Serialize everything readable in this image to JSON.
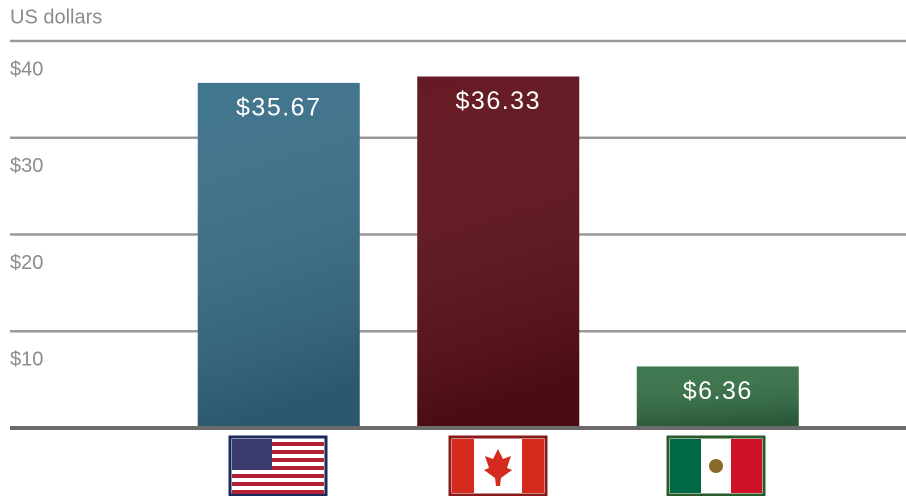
{
  "chart_data": {
    "type": "bar",
    "y_axis_label": "US dollars",
    "categories": [
      null,
      null,
      null
    ],
    "values": [
      35.67,
      36.33,
      6.36
    ],
    "value_labels": [
      "$35.67",
      "$36.33",
      "$6.36"
    ],
    "colors": [
      "#376e88",
      "#5e0e18",
      "#347046"
    ],
    "ylim": [
      0,
      40
    ],
    "yticks": [
      {
        "value": 10,
        "label": "$10"
      },
      {
        "value": 20,
        "label": "$20"
      },
      {
        "value": 30,
        "label": "$30"
      },
      {
        "value": 40,
        "label": "$40"
      }
    ],
    "grid": true
  }
}
